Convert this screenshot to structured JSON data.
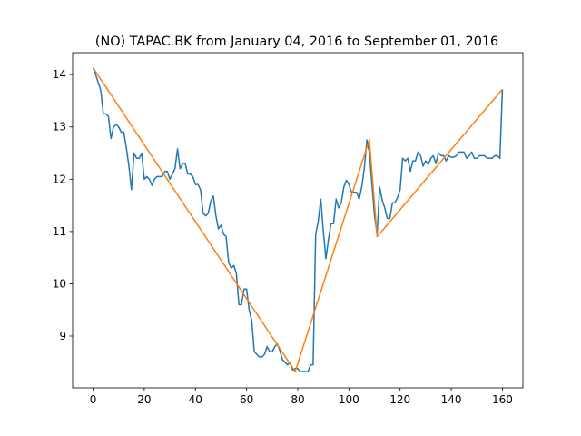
{
  "chart_data": {
    "type": "line",
    "title": "(NO) TAPAC.BK from January 04, 2016 to September 01, 2016",
    "xlim": [
      -8,
      168
    ],
    "xticks": [
      0,
      20,
      40,
      60,
      80,
      100,
      120,
      140,
      160
    ],
    "ylim": [
      8.01,
      14.42
    ],
    "yticks": [
      9,
      10,
      11,
      12,
      13,
      14
    ],
    "grid": false,
    "series": [
      {
        "color": "#1f77b4",
        "x": [
          0,
          1,
          2,
          3,
          4,
          5,
          6,
          7,
          8,
          9,
          10,
          11,
          12,
          13,
          14,
          15,
          16,
          17,
          18,
          19,
          20,
          21,
          22,
          23,
          24,
          25,
          26,
          27,
          28,
          29,
          30,
          31,
          32,
          33,
          34,
          35,
          36,
          37,
          38,
          39,
          40,
          41,
          42,
          43,
          44,
          45,
          46,
          47,
          48,
          49,
          50,
          51,
          52,
          53,
          54,
          55,
          56,
          57,
          58,
          59,
          60,
          61,
          62,
          63,
          64,
          65,
          66,
          67,
          68,
          69,
          70,
          71,
          72,
          73,
          74,
          75,
          76,
          77,
          78,
          79,
          80,
          81,
          82,
          83,
          84,
          85,
          86,
          87,
          88,
          89,
          90,
          91,
          92,
          93,
          94,
          95,
          96,
          97,
          98,
          99,
          100,
          101,
          102,
          103,
          104,
          105,
          106,
          107,
          108,
          109,
          110,
          111,
          112,
          113,
          114,
          115,
          116,
          117,
          118,
          119,
          120,
          121,
          122,
          123,
          124,
          125,
          126,
          127,
          128,
          129,
          130,
          131,
          132,
          133,
          134,
          135,
          136,
          137,
          138,
          139,
          140,
          141,
          142,
          143,
          144,
          145,
          146,
          147,
          148,
          149,
          150,
          151,
          152,
          153,
          154,
          155,
          156,
          157,
          158,
          159,
          160
        ],
        "values": [
          14.13,
          14.0,
          13.85,
          13.7,
          13.25,
          13.25,
          13.2,
          12.78,
          13.0,
          13.05,
          13.0,
          12.9,
          12.9,
          12.6,
          12.25,
          11.8,
          12.5,
          12.4,
          12.4,
          12.5,
          12.0,
          12.05,
          12.0,
          11.88,
          12.0,
          12.05,
          12.05,
          12.05,
          12.15,
          12.15,
          12.0,
          12.1,
          12.2,
          12.58,
          12.2,
          12.3,
          12.3,
          12.1,
          12.1,
          12.05,
          11.9,
          11.9,
          11.8,
          11.35,
          11.3,
          11.35,
          11.58,
          11.68,
          11.3,
          11.05,
          11.12,
          10.95,
          10.9,
          10.4,
          10.3,
          10.35,
          10.2,
          9.6,
          9.6,
          9.9,
          9.9,
          9.5,
          9.3,
          8.7,
          8.65,
          8.6,
          8.6,
          8.65,
          8.8,
          8.7,
          8.7,
          8.8,
          8.85,
          8.72,
          8.55,
          8.5,
          8.45,
          8.5,
          8.35,
          8.38,
          8.38,
          8.32,
          8.32,
          8.32,
          8.32,
          8.45,
          8.45,
          10.95,
          11.2,
          11.62,
          11.0,
          10.48,
          10.85,
          11.15,
          11.15,
          11.62,
          11.45,
          11.55,
          11.85,
          11.98,
          11.9,
          11.75,
          11.75,
          11.75,
          11.62,
          11.85,
          12.2,
          12.75,
          12.5,
          11.9,
          11.3,
          10.95,
          11.85,
          11.6,
          11.45,
          11.25,
          11.25,
          11.55,
          11.55,
          11.65,
          11.8,
          12.4,
          12.35,
          12.4,
          12.15,
          12.35,
          12.35,
          12.52,
          12.45,
          12.25,
          12.35,
          12.28,
          12.4,
          12.45,
          12.3,
          12.5,
          12.45,
          12.45,
          12.35,
          12.45,
          12.42,
          12.42,
          12.45,
          12.52,
          12.52,
          12.52,
          12.4,
          12.45,
          12.52,
          12.4,
          12.4,
          12.45,
          12.45,
          12.45,
          12.4,
          12.4,
          12.4,
          12.45,
          12.45,
          12.4,
          13.72
        ]
      },
      {
        "color": "#ff7f0e",
        "x": [
          0,
          79,
          108,
          111,
          160
        ],
        "values": [
          14.13,
          8.32,
          12.76,
          10.9,
          13.72
        ]
      }
    ]
  }
}
